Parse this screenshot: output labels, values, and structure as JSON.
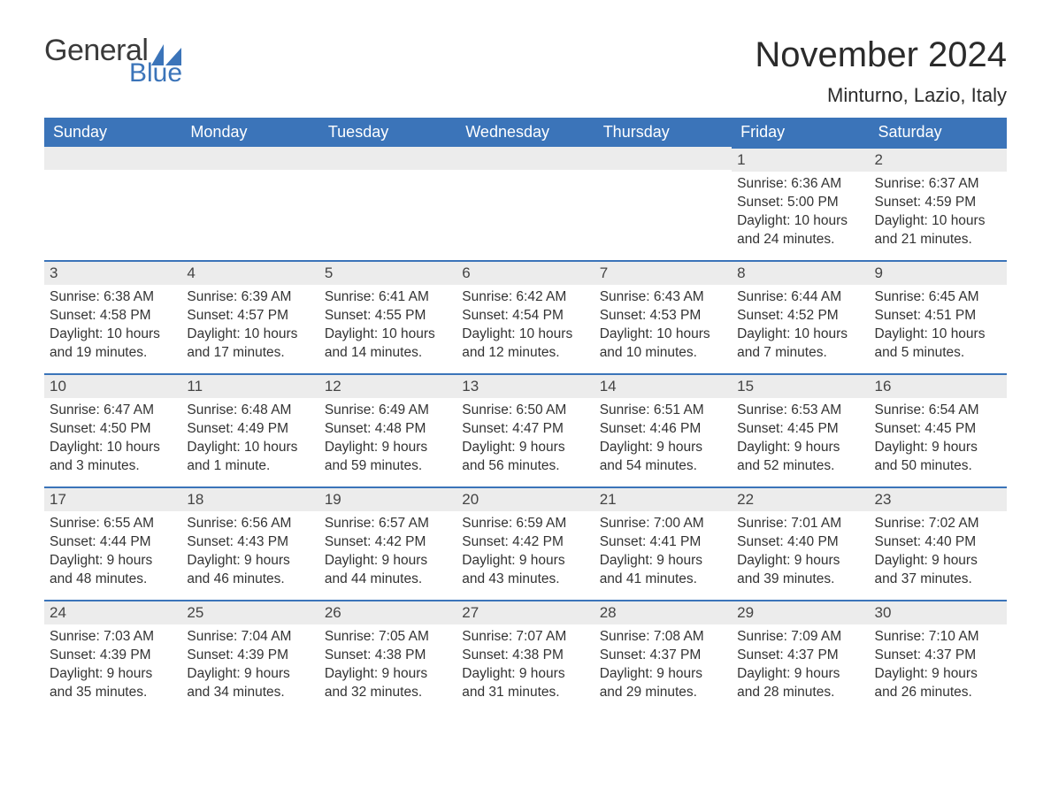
{
  "logo": {
    "text1": "General",
    "text2": "Blue",
    "icon_color": "#3b74b9"
  },
  "title": "November 2024",
  "location": "Minturno, Lazio, Italy",
  "colors": {
    "header_bg": "#3b74b9",
    "header_text": "#ffffff",
    "daynum_bg": "#ececec",
    "daynum_border": "#3b74b9",
    "body_text": "#333333",
    "page_bg": "#ffffff"
  },
  "fonts": {
    "title_size_pt": 30,
    "location_size_pt": 17,
    "header_size_pt": 14,
    "body_size_pt": 12
  },
  "weekdays": [
    "Sunday",
    "Monday",
    "Tuesday",
    "Wednesday",
    "Thursday",
    "Friday",
    "Saturday"
  ],
  "weeks": [
    [
      null,
      null,
      null,
      null,
      null,
      {
        "d": "1",
        "sunrise": "6:36 AM",
        "sunset": "5:00 PM",
        "daylight": "10 hours and 24 minutes."
      },
      {
        "d": "2",
        "sunrise": "6:37 AM",
        "sunset": "4:59 PM",
        "daylight": "10 hours and 21 minutes."
      }
    ],
    [
      {
        "d": "3",
        "sunrise": "6:38 AM",
        "sunset": "4:58 PM",
        "daylight": "10 hours and 19 minutes."
      },
      {
        "d": "4",
        "sunrise": "6:39 AM",
        "sunset": "4:57 PM",
        "daylight": "10 hours and 17 minutes."
      },
      {
        "d": "5",
        "sunrise": "6:41 AM",
        "sunset": "4:55 PM",
        "daylight": "10 hours and 14 minutes."
      },
      {
        "d": "6",
        "sunrise": "6:42 AM",
        "sunset": "4:54 PM",
        "daylight": "10 hours and 12 minutes."
      },
      {
        "d": "7",
        "sunrise": "6:43 AM",
        "sunset": "4:53 PM",
        "daylight": "10 hours and 10 minutes."
      },
      {
        "d": "8",
        "sunrise": "6:44 AM",
        "sunset": "4:52 PM",
        "daylight": "10 hours and 7 minutes."
      },
      {
        "d": "9",
        "sunrise": "6:45 AM",
        "sunset": "4:51 PM",
        "daylight": "10 hours and 5 minutes."
      }
    ],
    [
      {
        "d": "10",
        "sunrise": "6:47 AM",
        "sunset": "4:50 PM",
        "daylight": "10 hours and 3 minutes."
      },
      {
        "d": "11",
        "sunrise": "6:48 AM",
        "sunset": "4:49 PM",
        "daylight": "10 hours and 1 minute."
      },
      {
        "d": "12",
        "sunrise": "6:49 AM",
        "sunset": "4:48 PM",
        "daylight": "9 hours and 59 minutes."
      },
      {
        "d": "13",
        "sunrise": "6:50 AM",
        "sunset": "4:47 PM",
        "daylight": "9 hours and 56 minutes."
      },
      {
        "d": "14",
        "sunrise": "6:51 AM",
        "sunset": "4:46 PM",
        "daylight": "9 hours and 54 minutes."
      },
      {
        "d": "15",
        "sunrise": "6:53 AM",
        "sunset": "4:45 PM",
        "daylight": "9 hours and 52 minutes."
      },
      {
        "d": "16",
        "sunrise": "6:54 AM",
        "sunset": "4:45 PM",
        "daylight": "9 hours and 50 minutes."
      }
    ],
    [
      {
        "d": "17",
        "sunrise": "6:55 AM",
        "sunset": "4:44 PM",
        "daylight": "9 hours and 48 minutes."
      },
      {
        "d": "18",
        "sunrise": "6:56 AM",
        "sunset": "4:43 PM",
        "daylight": "9 hours and 46 minutes."
      },
      {
        "d": "19",
        "sunrise": "6:57 AM",
        "sunset": "4:42 PM",
        "daylight": "9 hours and 44 minutes."
      },
      {
        "d": "20",
        "sunrise": "6:59 AM",
        "sunset": "4:42 PM",
        "daylight": "9 hours and 43 minutes."
      },
      {
        "d": "21",
        "sunrise": "7:00 AM",
        "sunset": "4:41 PM",
        "daylight": "9 hours and 41 minutes."
      },
      {
        "d": "22",
        "sunrise": "7:01 AM",
        "sunset": "4:40 PM",
        "daylight": "9 hours and 39 minutes."
      },
      {
        "d": "23",
        "sunrise": "7:02 AM",
        "sunset": "4:40 PM",
        "daylight": "9 hours and 37 minutes."
      }
    ],
    [
      {
        "d": "24",
        "sunrise": "7:03 AM",
        "sunset": "4:39 PM",
        "daylight": "9 hours and 35 minutes."
      },
      {
        "d": "25",
        "sunrise": "7:04 AM",
        "sunset": "4:39 PM",
        "daylight": "9 hours and 34 minutes."
      },
      {
        "d": "26",
        "sunrise": "7:05 AM",
        "sunset": "4:38 PM",
        "daylight": "9 hours and 32 minutes."
      },
      {
        "d": "27",
        "sunrise": "7:07 AM",
        "sunset": "4:38 PM",
        "daylight": "9 hours and 31 minutes."
      },
      {
        "d": "28",
        "sunrise": "7:08 AM",
        "sunset": "4:37 PM",
        "daylight": "9 hours and 29 minutes."
      },
      {
        "d": "29",
        "sunrise": "7:09 AM",
        "sunset": "4:37 PM",
        "daylight": "9 hours and 28 minutes."
      },
      {
        "d": "30",
        "sunrise": "7:10 AM",
        "sunset": "4:37 PM",
        "daylight": "9 hours and 26 minutes."
      }
    ]
  ],
  "labels": {
    "sunrise": "Sunrise:",
    "sunset": "Sunset:",
    "daylight": "Daylight:"
  }
}
